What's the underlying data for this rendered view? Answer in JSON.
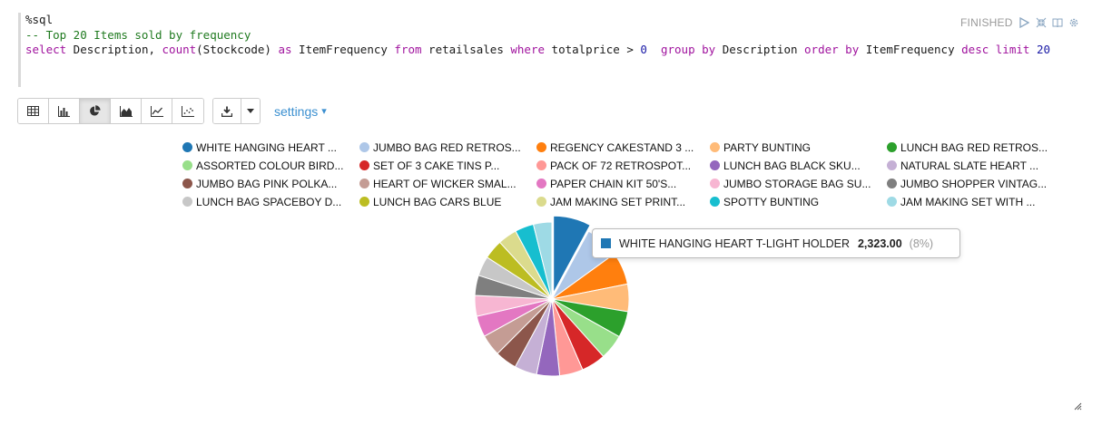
{
  "paragraph": {
    "status": "FINISHED",
    "code": {
      "line1": "%sql",
      "line2": "-- Top 20 Items sold by frequency",
      "line3_tokens": [
        {
          "t": "select",
          "k": "kw"
        },
        {
          "t": " Description, ",
          "k": "plain"
        },
        {
          "t": "count",
          "k": "kw"
        },
        {
          "t": "(Stockcode) ",
          "k": "plain"
        },
        {
          "t": "as",
          "k": "kw"
        },
        {
          "t": " ItemFrequency ",
          "k": "plain"
        },
        {
          "t": "from",
          "k": "kw"
        },
        {
          "t": " retailsales ",
          "k": "plain"
        },
        {
          "t": "where",
          "k": "kw"
        },
        {
          "t": " totalprice > ",
          "k": "plain"
        },
        {
          "t": "0",
          "k": "num"
        },
        {
          "t": "  ",
          "k": "plain"
        },
        {
          "t": "group by",
          "k": "kw"
        },
        {
          "t": " Description ",
          "k": "plain"
        },
        {
          "t": "order by",
          "k": "kw"
        },
        {
          "t": " ItemFrequency ",
          "k": "plain"
        },
        {
          "t": "desc",
          "k": "kw"
        },
        {
          "t": " ",
          "k": "plain"
        },
        {
          "t": "limit",
          "k": "kw"
        },
        {
          "t": " ",
          "k": "plain"
        },
        {
          "t": "20",
          "k": "num"
        }
      ]
    },
    "status_icons": [
      "run-icon",
      "collapse-icon",
      "book-icon",
      "gear-icon"
    ]
  },
  "toolbar": {
    "chart_buttons": [
      {
        "name": "table-icon",
        "active": false
      },
      {
        "name": "bar-chart-icon",
        "active": false
      },
      {
        "name": "pie-chart-icon",
        "active": true
      },
      {
        "name": "area-chart-icon",
        "active": false
      },
      {
        "name": "line-chart-icon",
        "active": false
      },
      {
        "name": "scatter-chart-icon",
        "active": false
      }
    ],
    "download_icon": "download-icon",
    "settings_label": "settings",
    "settings_caret": "▾"
  },
  "legend": [
    {
      "label": "WHITE HANGING HEART ...",
      "color": "#1f77b4"
    },
    {
      "label": "JUMBO BAG RED RETROS...",
      "color": "#aec7e8"
    },
    {
      "label": "REGENCY CAKESTAND 3 ...",
      "color": "#ff7f0e"
    },
    {
      "label": "PARTY BUNTING",
      "color": "#ffbb78"
    },
    {
      "label": "LUNCH BAG RED RETROS...",
      "color": "#2ca02c"
    },
    {
      "label": "ASSORTED COLOUR BIRD...",
      "color": "#98df8a"
    },
    {
      "label": "SET OF 3 CAKE TINS P...",
      "color": "#d62728"
    },
    {
      "label": "PACK OF 72 RETROSPOT...",
      "color": "#ff9896"
    },
    {
      "label": "LUNCH BAG BLACK SKU...",
      "color": "#9467bd"
    },
    {
      "label": "NATURAL SLATE HEART ...",
      "color": "#c5b0d5"
    },
    {
      "label": "JUMBO BAG PINK POLKA...",
      "color": "#8c564b"
    },
    {
      "label": "HEART OF WICKER SMAL...",
      "color": "#c49c94"
    },
    {
      "label": "PAPER CHAIN KIT 50'S...",
      "color": "#e377c2"
    },
    {
      "label": "JUMBO STORAGE BAG SU...",
      "color": "#f7b6d2"
    },
    {
      "label": "JUMBO SHOPPER VINTAG...",
      "color": "#7f7f7f"
    },
    {
      "label": "LUNCH BAG SPACEBOY D...",
      "color": "#c7c7c7"
    },
    {
      "label": "LUNCH BAG CARS BLUE",
      "color": "#bcbd22"
    },
    {
      "label": "JAM MAKING SET PRINT...",
      "color": "#dbdb8d"
    },
    {
      "label": "SPOTTY BUNTING",
      "color": "#17becf"
    },
    {
      "label": "JAM MAKING SET WITH ...",
      "color": "#9edae5"
    }
  ],
  "chart_data": {
    "type": "pie",
    "categories": [
      "WHITE HANGING HEART ...",
      "JUMBO BAG RED RETROS...",
      "REGENCY CAKESTAND 3 ...",
      "PARTY BUNTING",
      "LUNCH BAG RED RETROS...",
      "ASSORTED COLOUR BIRD...",
      "SET OF 3 CAKE TINS P...",
      "PACK OF 72 RETROSPOT...",
      "LUNCH BAG BLACK SKU...",
      "NATURAL SLATE HEART ...",
      "JUMBO BAG PINK POLKA...",
      "HEART OF WICKER SMAL...",
      "PAPER CHAIN KIT 50'S...",
      "JUMBO STORAGE BAG SU...",
      "JUMBO SHOPPER VINTAG...",
      "LUNCH BAG SPACEBOY D...",
      "LUNCH BAG CARS BLUE",
      "JAM MAKING SET PRINT...",
      "SPOTTY BUNTING",
      "JAM MAKING SET WITH ..."
    ],
    "values": [
      2323,
      2100,
      2020,
      1700,
      1620,
      1550,
      1500,
      1450,
      1420,
      1380,
      1350,
      1330,
      1300,
      1280,
      1250,
      1220,
      1200,
      1180,
      1160,
      1140
    ],
    "colors": [
      "#1f77b4",
      "#aec7e8",
      "#ff7f0e",
      "#ffbb78",
      "#2ca02c",
      "#98df8a",
      "#d62728",
      "#ff9896",
      "#9467bd",
      "#c5b0d5",
      "#8c564b",
      "#c49c94",
      "#e377c2",
      "#f7b6d2",
      "#7f7f7f",
      "#c7c7c7",
      "#bcbd22",
      "#dbdb8d",
      "#17becf",
      "#9edae5"
    ],
    "highlighted_index": 0
  },
  "tooltip": {
    "label": "WHITE HANGING HEART T-LIGHT HOLDER",
    "value": "2,323.00",
    "percent": "(8%)",
    "color": "#1f77b4"
  }
}
